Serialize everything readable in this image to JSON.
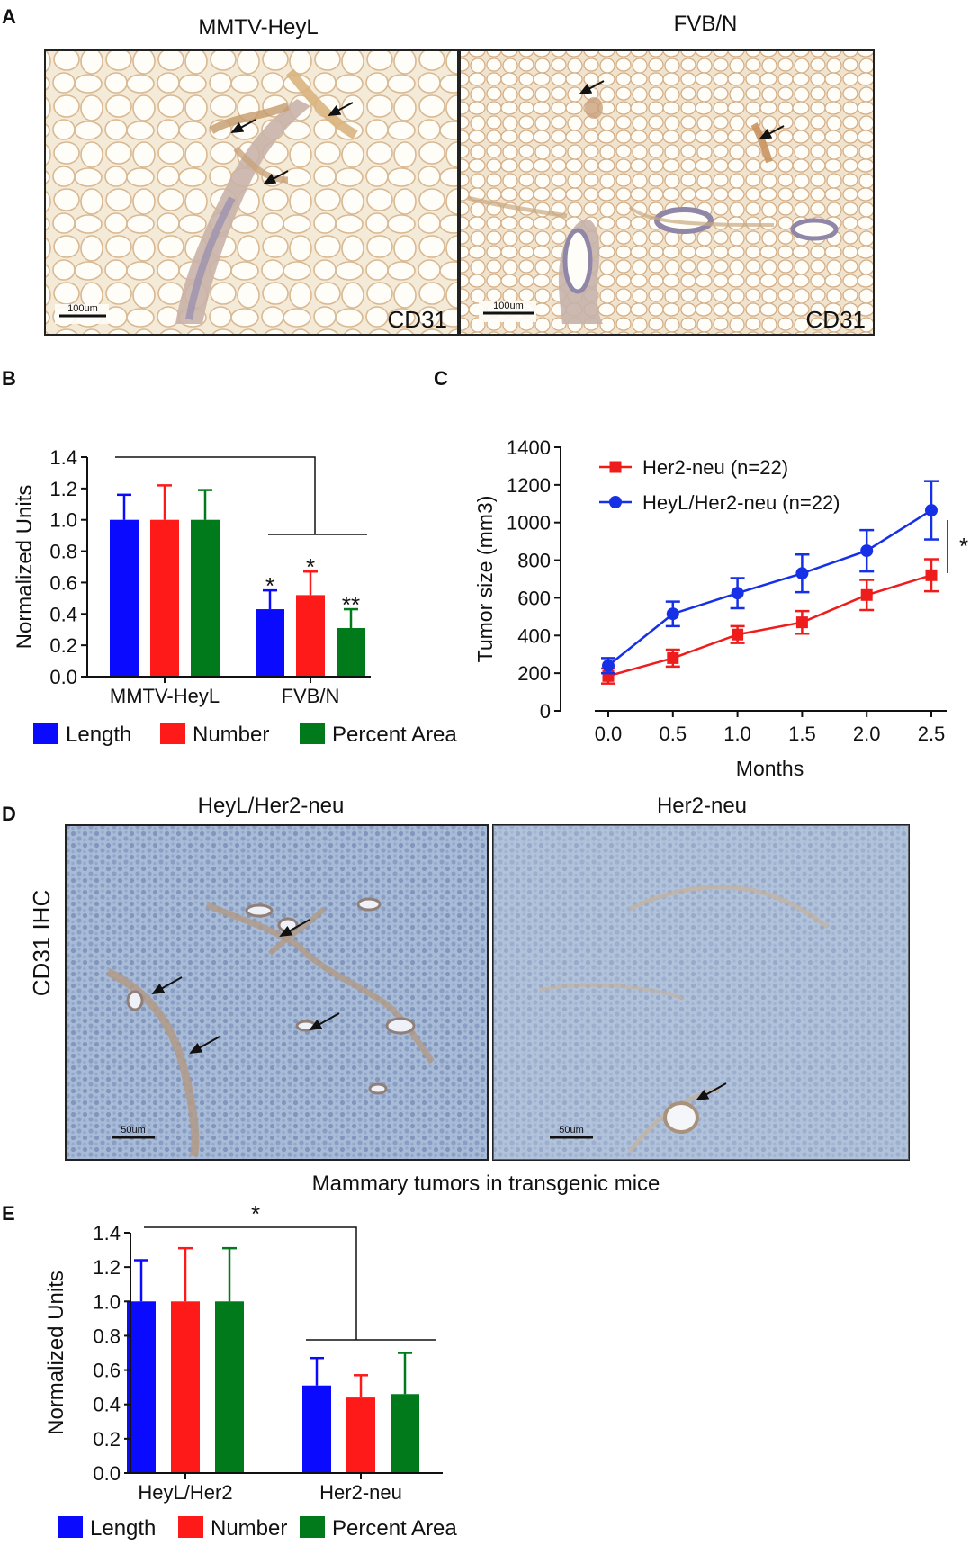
{
  "panelA": {
    "letter": "A",
    "left": {
      "title": "MMTV-HeyL",
      "stain": "CD31",
      "scale": "100um"
    },
    "right": {
      "title": "FVB/N",
      "stain": "CD31",
      "scale": "100um"
    }
  },
  "panelD": {
    "letter": "D",
    "row_label": "CD31 IHC",
    "left": {
      "title": "HeyL/Her2-neu",
      "scale": "50um"
    },
    "right": {
      "title": "Her2-neu",
      "scale": "50um"
    },
    "caption": "Mammary tumors in transgenic mice"
  },
  "colors": {
    "length": "#0a0aff",
    "number": "#ff1a1a",
    "percent_area": "#007a1a",
    "her2": "#ef1c1c",
    "heyl": "#1530e6"
  },
  "chart_data": [
    {
      "id": "B",
      "letter": "B",
      "type": "bar",
      "ylabel": "Normalized Units",
      "ylim": [
        0,
        1.4
      ],
      "yticks": [
        "0.0",
        "0.2",
        "0.4",
        "0.6",
        "0.8",
        "1.0",
        "1.2",
        "1.4"
      ],
      "categories": [
        "MMTV-HeyL",
        "FVB/N"
      ],
      "series": [
        {
          "name": "Length",
          "color": "#0a0aff",
          "values": [
            1.0,
            0.43
          ],
          "errors": [
            0.16,
            0.12
          ]
        },
        {
          "name": "Number",
          "color": "#ff1a1a",
          "values": [
            1.0,
            0.52
          ],
          "errors": [
            0.22,
            0.15
          ]
        },
        {
          "name": "Percent Area",
          "color": "#007a1a",
          "values": [
            1.0,
            0.31
          ],
          "errors": [
            0.19,
            0.12
          ]
        }
      ],
      "annotations": [
        "*",
        "*",
        "**"
      ],
      "legend": "bottom"
    },
    {
      "id": "C",
      "letter": "C",
      "type": "line",
      "xlabel": "Months",
      "ylabel": "Tumor size (mm3)",
      "xlim": [
        0,
        2.5
      ],
      "ylim": [
        0,
        1400
      ],
      "xticks": [
        "0.0",
        "0.5",
        "1.0",
        "1.5",
        "2.0",
        "2.5"
      ],
      "yticks": [
        "0",
        "200",
        "400",
        "600",
        "800",
        "1000",
        "1200",
        "1400"
      ],
      "x": [
        0,
        0.5,
        1.0,
        1.5,
        2.0,
        2.5
      ],
      "series": [
        {
          "name": "Her2-neu (n=22)",
          "color": "#ef1c1c",
          "marker": "square",
          "values": [
            185,
            280,
            405,
            470,
            615,
            720
          ],
          "errors": [
            40,
            45,
            45,
            60,
            80,
            85
          ]
        },
        {
          "name": "HeyL/Her2-neu (n=22)",
          "color": "#1530e6",
          "marker": "circle",
          "values": [
            240,
            515,
            625,
            730,
            850,
            1065
          ],
          "errors": [
            40,
            65,
            80,
            100,
            110,
            155
          ]
        }
      ],
      "significance": "*",
      "legend": "top-left"
    },
    {
      "id": "E",
      "letter": "E",
      "type": "bar",
      "ylabel": "Normalized Units",
      "ylim": [
        0,
        1.4
      ],
      "yticks": [
        "0.0",
        "0.2",
        "0.4",
        "0.6",
        "0.8",
        "1.0",
        "1.2",
        "1.4"
      ],
      "categories": [
        "HeyL/Her2",
        "Her2-neu"
      ],
      "series": [
        {
          "name": "Length",
          "color": "#0a0aff",
          "values": [
            1.0,
            0.51
          ],
          "errors": [
            0.24,
            0.16
          ]
        },
        {
          "name": "Number",
          "color": "#ff1a1a",
          "values": [
            1.0,
            0.44
          ],
          "errors": [
            0.31,
            0.13
          ]
        },
        {
          "name": "Percent Area",
          "color": "#007a1a",
          "values": [
            1.0,
            0.46
          ],
          "errors": [
            0.31,
            0.24
          ]
        }
      ],
      "significance": "*",
      "legend": "bottom"
    }
  ]
}
